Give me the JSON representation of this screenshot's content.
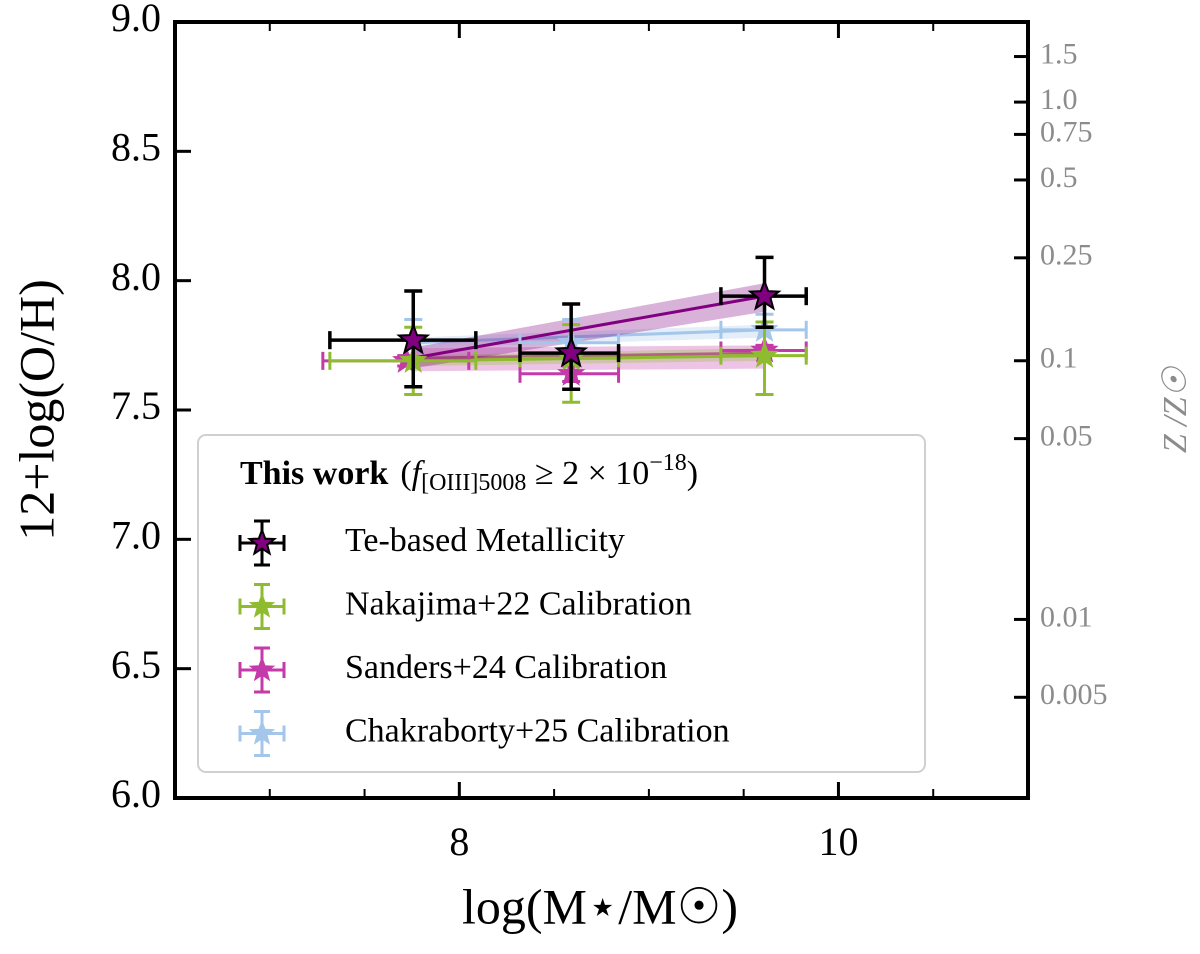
{
  "chart_data": {
    "type": "errorbar",
    "xlabel": "log(M⋆/M☉)",
    "ylabel": "12+log(O/H)",
    "y2label": "Z /Z☉",
    "xlim": [
      6.5,
      11
    ],
    "xticks": [
      8,
      10
    ],
    "xminorticks": [
      7,
      7.5,
      8.5,
      9,
      9.5,
      10.5
    ],
    "ylim": [
      6,
      9
    ],
    "yticks": [
      {
        "value": 6,
        "label": "6.0"
      },
      {
        "value": 6.5,
        "label": "6.5"
      },
      {
        "value": 7,
        "label": "7.0"
      },
      {
        "value": 7.5,
        "label": "7.5"
      },
      {
        "value": 8,
        "label": "8.0"
      },
      {
        "value": 8.5,
        "label": "8.5"
      },
      {
        "value": 9,
        "label": "9.0"
      }
    ],
    "y2scale": "log",
    "y2lim": [
      0.00204,
      2.04
    ],
    "y2ticks": [
      1.5,
      {
        "value": 1,
        "label": "1.0"
      },
      0.75,
      0.5,
      0.25,
      0.1,
      0.05,
      0.01,
      0.005
    ],
    "legend_title": "This work",
    "legend_condition": {
      "f": "f",
      "sub": "[OIII]5008",
      "rel": " ≥ 2 × 10",
      "exp": "−18",
      "open": "(",
      "close": ")"
    },
    "fit_x": [
      7.75,
      9.61
    ],
    "series": [
      {
        "name": "Te-based Metallicity",
        "color": "#800080",
        "ecolor": "#000000",
        "x": [
          7.757,
          8.59,
          9.61
        ],
        "xerr": [
          [
            0.44,
            0.33
          ],
          [
            0.27,
            0.25
          ],
          [
            0.23,
            0.22
          ]
        ],
        "values": [
          7.77,
          7.72,
          7.94
        ],
        "yerr": [
          [
            0.18,
            0.19
          ],
          [
            0.14,
            0.19
          ],
          [
            0.12,
            0.15
          ]
        ],
        "fit": [
          7.7,
          7.94
        ],
        "fit_low": [
          7.66,
          7.88
        ],
        "fit_high": [
          7.74,
          7.99
        ]
      },
      {
        "name": "Nakajima+22 Calibration",
        "color": "#8fbc2f",
        "ecolor": "#8fbc2f",
        "x": [
          7.757,
          8.59,
          9.61
        ],
        "xerr": [
          [
            0.44,
            0.33
          ],
          [
            0.27,
            0.25
          ],
          [
            0.23,
            0.22
          ]
        ],
        "values": [
          7.69,
          7.7,
          7.71
        ],
        "yerr": [
          [
            0.13,
            0.13
          ],
          [
            0.17,
            0.13
          ],
          [
            0.15,
            0.13
          ]
        ],
        "fit": [
          7.69,
          7.71
        ],
        "fit_low": [
          7.67,
          7.69
        ],
        "fit_high": [
          7.71,
          7.74
        ]
      },
      {
        "name": "Sanders+24 Calibration",
        "color": "#c33aa8",
        "ecolor": "#c33aa8",
        "x": [
          7.72,
          8.59,
          9.61
        ],
        "xerr": [
          [
            0.44,
            0.33
          ],
          [
            0.27,
            0.25
          ],
          [
            0.23,
            0.22
          ]
        ],
        "values": [
          7.69,
          7.64,
          7.73
        ],
        "yerr": [
          [
            0.02,
            0.02
          ],
          [
            0.03,
            0.03
          ],
          [
            0.02,
            0.02
          ]
        ],
        "fit": [
          7.7,
          7.72
        ],
        "fit_low": [
          7.65,
          7.66
        ],
        "fit_high": [
          7.74,
          7.75
        ]
      },
      {
        "name": "Chakraborty+25 Calibration",
        "color": "#a3c6ea",
        "ecolor": "#a3c6ea",
        "x": [
          7.757,
          8.59,
          9.61
        ],
        "xerr": [
          [
            0.44,
            0.33
          ],
          [
            0.27,
            0.25
          ],
          [
            0.23,
            0.22
          ]
        ],
        "values": [
          7.77,
          7.76,
          7.81
        ],
        "yerr": [
          [
            0.07,
            0.08
          ],
          [
            0.07,
            0.09
          ],
          [
            0.06,
            0.06
          ]
        ],
        "fit": [
          7.76,
          7.81
        ],
        "fit_low": [
          7.74,
          7.78
        ],
        "fit_high": [
          7.78,
          7.83
        ]
      }
    ]
  }
}
